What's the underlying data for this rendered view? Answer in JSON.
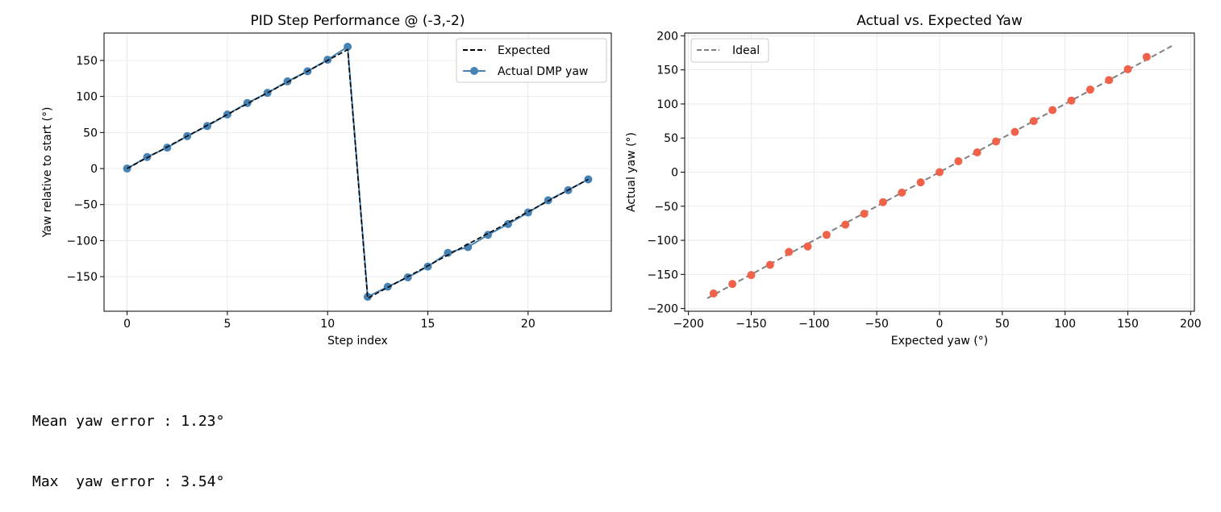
{
  "chart_data": [
    {
      "type": "line",
      "title": "PID Step Performance @ (-3,-2)",
      "xlabel": "Step index",
      "ylabel": "Yaw relative to start (°)",
      "xlim": [
        -1.15,
        24.15
      ],
      "ylim": [
        -198,
        188
      ],
      "xticks": [
        0,
        5,
        10,
        15,
        20
      ],
      "yticks": [
        -150,
        -100,
        -50,
        0,
        50,
        100,
        150
      ],
      "grid": true,
      "legend_position": "upper right",
      "series": [
        {
          "name": "Expected",
          "style": "dashed",
          "color": "#000000",
          "x": [
            0,
            1,
            2,
            3,
            4,
            5,
            6,
            7,
            8,
            9,
            10,
            11,
            12,
            13,
            14,
            15,
            16,
            17,
            18,
            19,
            20,
            21,
            22,
            23
          ],
          "y": [
            0,
            15,
            30,
            45,
            60,
            75,
            90,
            105,
            120,
            135,
            150,
            165,
            -180,
            -165,
            -150,
            -135,
            -120,
            -105,
            -90,
            -75,
            -60,
            -45,
            -30,
            -15
          ]
        },
        {
          "name": "Actual DMP yaw",
          "style": "solid-with-markers",
          "color": "#4682b4",
          "x": [
            0,
            1,
            2,
            3,
            4,
            5,
            6,
            7,
            8,
            9,
            10,
            11,
            12,
            13,
            14,
            15,
            16,
            17,
            18,
            19,
            20,
            21,
            22,
            23
          ],
          "y": [
            0,
            16,
            29,
            45,
            59,
            75,
            91,
            105,
            121,
            135,
            151,
            169,
            -178,
            -164,
            -151,
            -136,
            -117,
            -109,
            -92,
            -77,
            -61,
            -44,
            -30,
            -15
          ]
        }
      ]
    },
    {
      "type": "scatter",
      "title": "Actual vs. Expected Yaw",
      "xlabel": "Expected yaw (°)",
      "ylabel": "Actual yaw (°)",
      "xlim": [
        -203,
        203
      ],
      "ylim": [
        -204,
        204
      ],
      "xticks": [
        -200,
        -150,
        -100,
        -50,
        0,
        50,
        100,
        150,
        200
      ],
      "yticks": [
        -200,
        -150,
        -100,
        -50,
        0,
        50,
        100,
        150,
        200
      ],
      "grid": true,
      "legend_position": "upper left",
      "ideal_line": {
        "name": "Ideal",
        "style": "dashed",
        "color": "#808080",
        "x": [
          -185,
          185
        ],
        "y": [
          -185,
          185
        ]
      },
      "points": {
        "color": "#f0624a",
        "x": [
          -180,
          -165,
          -150,
          -135,
          -120,
          -105,
          -90,
          -75,
          -60,
          -45,
          -30,
          -15,
          0,
          15,
          30,
          45,
          60,
          75,
          90,
          105,
          120,
          135,
          150,
          165
        ],
        "y": [
          -178,
          -164,
          -151,
          -136,
          -117,
          -109,
          -92,
          -77,
          -61,
          -44,
          -30,
          -15,
          0,
          16,
          29,
          45,
          59,
          75,
          91,
          105,
          121,
          135,
          151,
          169
        ]
      }
    }
  ],
  "console": {
    "mean_line": "Mean yaw error : 1.23°",
    "max_line": "Max  yaw error : 3.54°"
  }
}
